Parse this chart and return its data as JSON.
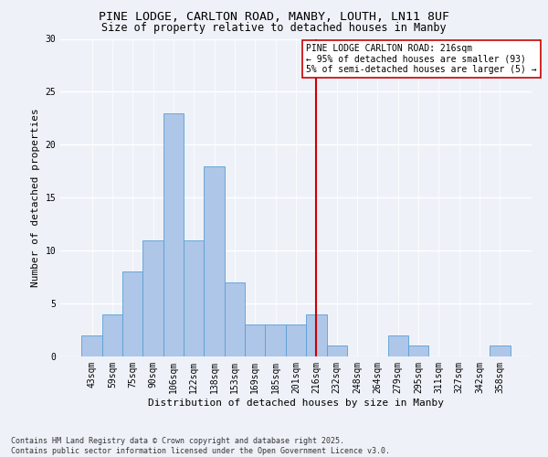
{
  "title_line1": "PINE LODGE, CARLTON ROAD, MANBY, LOUTH, LN11 8UF",
  "title_line2": "Size of property relative to detached houses in Manby",
  "xlabel": "Distribution of detached houses by size in Manby",
  "ylabel": "Number of detached properties",
  "footnote": "Contains HM Land Registry data © Crown copyright and database right 2025.\nContains public sector information licensed under the Open Government Licence v3.0.",
  "categories": [
    "43sqm",
    "59sqm",
    "75sqm",
    "90sqm",
    "106sqm",
    "122sqm",
    "138sqm",
    "153sqm",
    "169sqm",
    "185sqm",
    "201sqm",
    "216sqm",
    "232sqm",
    "248sqm",
    "264sqm",
    "279sqm",
    "295sqm",
    "311sqm",
    "327sqm",
    "342sqm",
    "358sqm"
  ],
  "values": [
    2,
    4,
    8,
    11,
    23,
    11,
    18,
    7,
    3,
    3,
    3,
    4,
    1,
    0,
    0,
    2,
    1,
    0,
    0,
    0,
    1
  ],
  "bar_color": "#aec6e8",
  "bar_edgecolor": "#5a9fd4",
  "vline_x": 11,
  "vline_color": "#cc0000",
  "annotation_line1": "PINE LODGE CARLTON ROAD: 216sqm",
  "annotation_line2": "← 95% of detached houses are smaller (93)",
  "annotation_line3": "5% of semi-detached houses are larger (5) →",
  "annotation_box_color": "#cc0000",
  "ylim": [
    0,
    30
  ],
  "yticks": [
    0,
    5,
    10,
    15,
    20,
    25,
    30
  ],
  "background_color": "#eef2f8",
  "grid_color": "#ffffff",
  "title_fontsize": 9.5,
  "subtitle_fontsize": 8.5,
  "axis_label_fontsize": 8,
  "tick_fontsize": 7,
  "annotation_fontsize": 7,
  "footnote_fontsize": 6
}
